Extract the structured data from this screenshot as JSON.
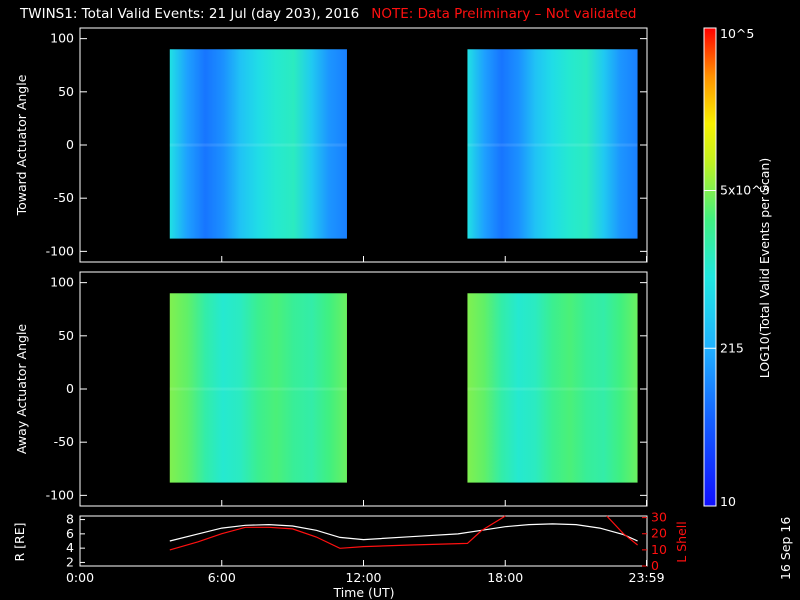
{
  "title": "TWINS1: Total Valid Events: 21 Jul (day 203), 2016",
  "note": "NOTE: Data Preliminary – Not validated",
  "stamp": "16 Sep 16",
  "colors": {
    "line_white": "#ffffff",
    "line_red": "#ff1010",
    "background": "#000000"
  },
  "chart_data": [
    {
      "type": "heatmap",
      "name": "toward",
      "ylabel": "Toward Actuator Angle",
      "ylim": [
        -110,
        110
      ],
      "yticks": [
        100,
        50,
        0,
        -50,
        -100
      ],
      "xlim_hours": [
        0,
        24
      ],
      "coverage_hours": [
        [
          3.8,
          11.3
        ],
        [
          16.4,
          23.6
        ]
      ],
      "angle_range": [
        -88,
        90
      ],
      "colorbar_levels": [
        0.46,
        0.3,
        0.22,
        0.27,
        0.38,
        0.45,
        0.5,
        0.52,
        0.4,
        0.28,
        0.24
      ]
    },
    {
      "type": "heatmap",
      "name": "away",
      "ylabel": "Away Actuator Angle",
      "ylim": [
        -110,
        110
      ],
      "yticks": [
        100,
        50,
        0,
        -50,
        -100
      ],
      "xlim_hours": [
        0,
        24
      ],
      "coverage_hours": [
        [
          3.8,
          11.3
        ],
        [
          16.4,
          23.6
        ]
      ],
      "angle_range": [
        -88,
        90
      ],
      "colorbar_levels": [
        0.66,
        0.63,
        0.55,
        0.5,
        0.52,
        0.58,
        0.61,
        0.57,
        0.55,
        0.6,
        0.64
      ]
    },
    {
      "type": "line",
      "name": "orbit",
      "ylabel_left": "R [RE]",
      "ylabel_right": "L Shell",
      "y_left_ticks": [
        2,
        4,
        6,
        8
      ],
      "y_left_lim": [
        1.5,
        8.5
      ],
      "y_right_ticks": [
        0,
        10,
        20,
        30
      ],
      "y_right_lim": [
        0,
        31
      ],
      "xlabel": "Time (UT)",
      "xticks": [
        {
          "hour": 0,
          "label": "0:00"
        },
        {
          "hour": 6,
          "label": "6:00"
        },
        {
          "hour": 12,
          "label": "12:00"
        },
        {
          "hour": 18,
          "label": "18:00"
        },
        {
          "hour": 23.98,
          "label": "23:59"
        }
      ],
      "series": [
        {
          "name": "R",
          "axis": "left",
          "x": [
            3.8,
            5.0,
            6.0,
            7.0,
            8.0,
            9.0,
            10.0,
            11.0,
            12.0,
            14.0,
            16.0,
            17.0,
            18.0,
            19.0,
            20.0,
            21.0,
            22.0,
            23.0,
            23.6
          ],
          "y": [
            5.0,
            6.0,
            6.8,
            7.2,
            7.3,
            7.1,
            6.5,
            5.5,
            5.2,
            5.6,
            6.0,
            6.5,
            7.0,
            7.3,
            7.4,
            7.3,
            6.8,
            5.9,
            5.0
          ]
        },
        {
          "name": "L Shell",
          "axis": "right",
          "x": [
            3.8,
            5.0,
            6.0,
            7.0,
            8.0,
            9.0,
            10.0,
            11.0,
            12.0,
            14.0,
            16.4,
            17.0,
            18.0
          ],
          "y": [
            10,
            15,
            20,
            24,
            24,
            23,
            18,
            11,
            12,
            13,
            14,
            22,
            31
          ]
        },
        {
          "name": "L Shell (late)",
          "axis": "right",
          "x": [
            22.3,
            23.0,
            23.6
          ],
          "y": [
            31,
            20,
            13
          ]
        }
      ]
    },
    {
      "type": "colorbar",
      "label": "LOG10(Total Valid Events per Scan)",
      "ticks": [
        {
          "pos": 0.0,
          "label": "10"
        },
        {
          "pos": 0.33,
          "label": "215"
        },
        {
          "pos": 0.66,
          "label": "5x10^3"
        },
        {
          "pos": 1.0,
          "label": "10^5"
        }
      ]
    }
  ]
}
